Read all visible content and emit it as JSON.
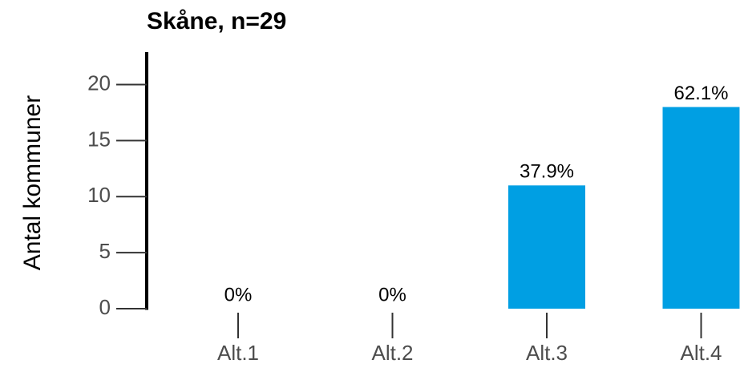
{
  "chart_data": {
    "type": "bar",
    "title": "Skåne, n=29",
    "y_label": "Antal kommuner",
    "categories": [
      "Alt.1",
      "Alt.2",
      "Alt.3",
      "Alt.4"
    ],
    "values": [
      0,
      0,
      11,
      18
    ],
    "value_labels": [
      "0%",
      "0%",
      "37.9%",
      "62.1%"
    ],
    "color": "#009fe3",
    "ylim": [
      0,
      22.9
    ],
    "yticks": [
      0,
      5,
      10,
      15,
      20
    ]
  }
}
